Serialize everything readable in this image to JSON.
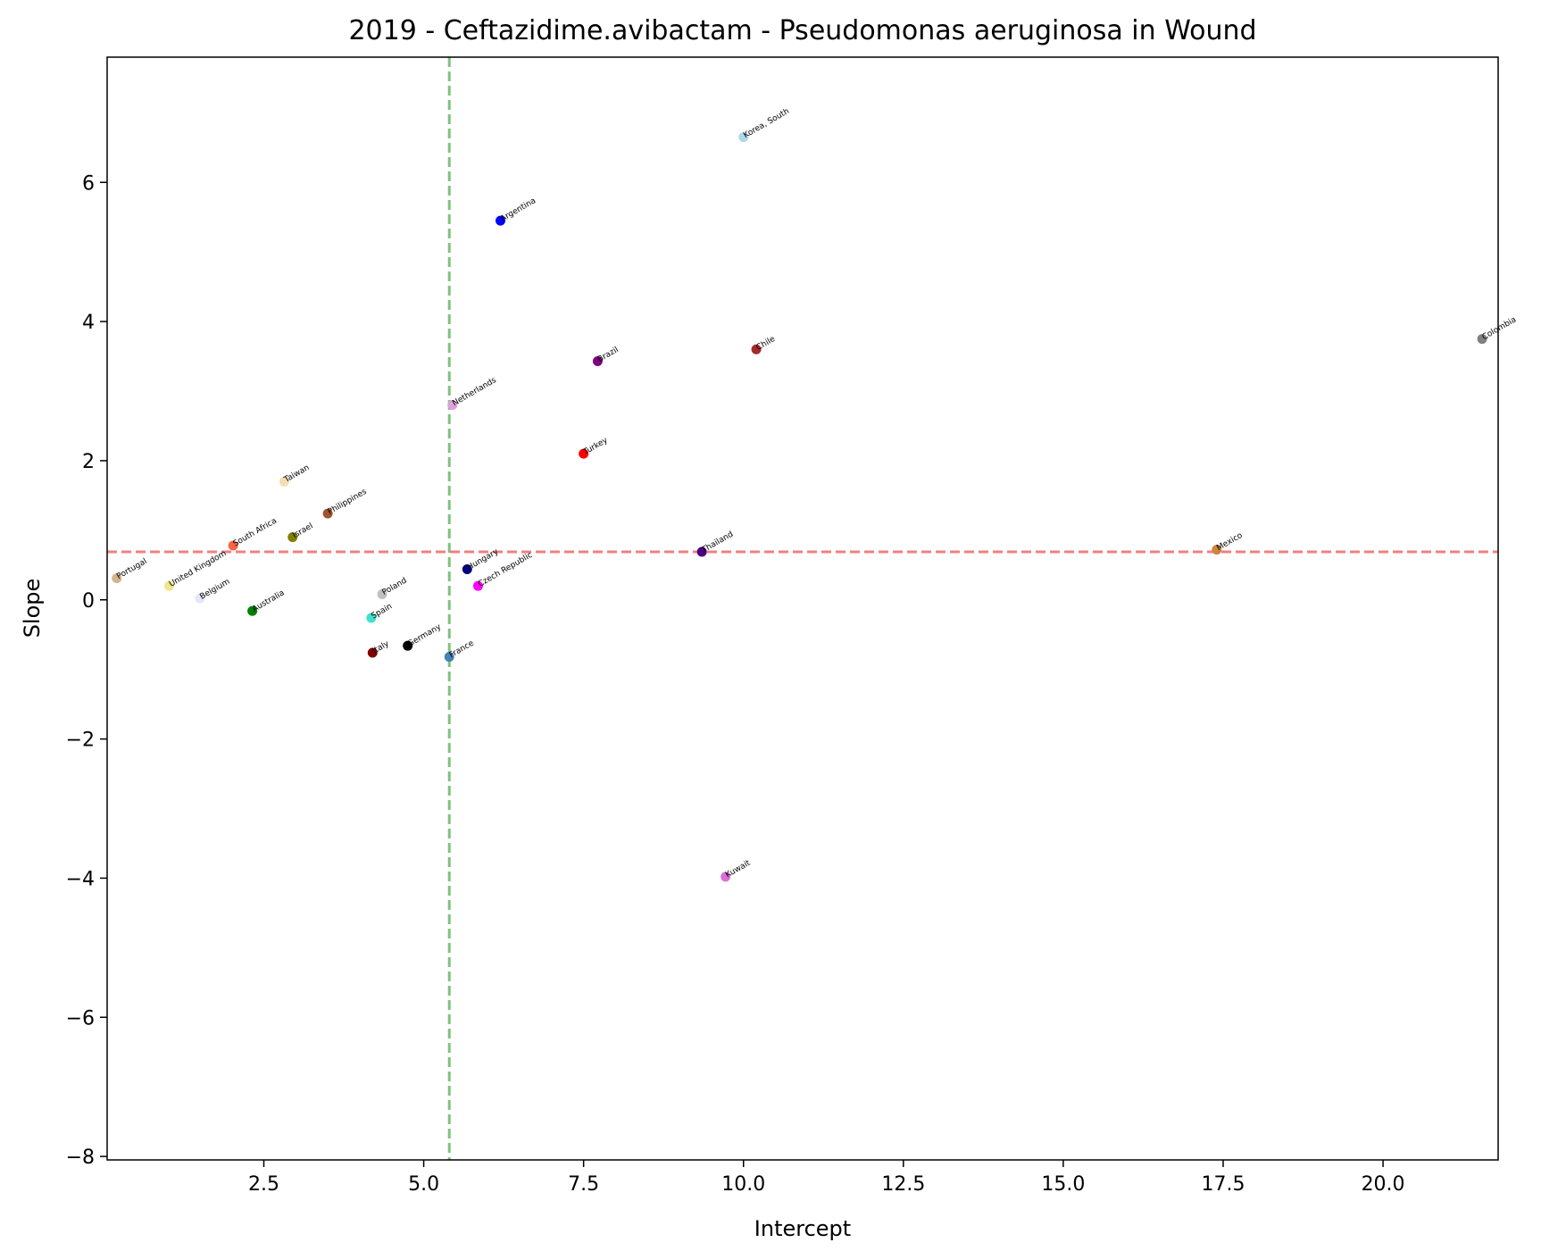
{
  "chart_data": {
    "type": "scatter",
    "title": "2019 - Ceftazidime.avibactam - Pseudomonas aeruginosa in Wound",
    "xlabel": "Intercept",
    "ylabel": "Slope",
    "xlim": [
      0.05,
      21.8
    ],
    "ylim": [
      -8.05,
      7.8
    ],
    "xticks": [
      2.5,
      5.0,
      7.5,
      10.0,
      12.5,
      15.0,
      17.5,
      20.0
    ],
    "xtick_labels": [
      "2.5",
      "5.0",
      "7.5",
      "10.0",
      "12.5",
      "15.0",
      "17.5",
      "20.0"
    ],
    "yticks": [
      -8,
      -6,
      -4,
      -2,
      0,
      2,
      4,
      6
    ],
    "ytick_labels": [
      "−8",
      "−6",
      "−4",
      "−2",
      "0",
      "2",
      "4",
      "6"
    ],
    "grid": false,
    "reference_lines": [
      {
        "orientation": "vertical",
        "value": 5.4,
        "color": "#7dc47d",
        "style": "dashed"
      },
      {
        "orientation": "horizontal",
        "value": 0.69,
        "color": "#f08080",
        "style": "dashed"
      }
    ],
    "points": [
      {
        "label": "Korea, South",
        "x": 10.0,
        "y": 6.65,
        "color": "#add8e6"
      },
      {
        "label": "Argentina",
        "x": 6.2,
        "y": 5.45,
        "color": "#0000ff"
      },
      {
        "label": "Colombia",
        "x": 21.55,
        "y": 3.75,
        "color": "#808080"
      },
      {
        "label": "Chile",
        "x": 10.2,
        "y": 3.6,
        "color": "#a52a2a"
      },
      {
        "label": "Brazil",
        "x": 7.72,
        "y": 3.43,
        "color": "#800080"
      },
      {
        "label": "Netherlands",
        "x": 5.45,
        "y": 2.8,
        "color": "#dda0dd"
      },
      {
        "label": "Turkey",
        "x": 7.5,
        "y": 2.1,
        "color": "#ff0000"
      },
      {
        "label": "Taiwan",
        "x": 2.82,
        "y": 1.7,
        "color": "#f5deb3"
      },
      {
        "label": "Philippines",
        "x": 3.5,
        "y": 1.24,
        "color": "#a0522d"
      },
      {
        "label": "Israel",
        "x": 2.95,
        "y": 0.9,
        "color": "#808000"
      },
      {
        "label": "South Africa",
        "x": 2.02,
        "y": 0.78,
        "color": "#ff6347"
      },
      {
        "label": "Thailand",
        "x": 9.35,
        "y": 0.69,
        "color": "#4b0082"
      },
      {
        "label": "Mexico",
        "x": 17.4,
        "y": 0.72,
        "color": "#cd853f"
      },
      {
        "label": "Hungary",
        "x": 5.68,
        "y": 0.44,
        "color": "#000080"
      },
      {
        "label": "Portugal",
        "x": 0.2,
        "y": 0.31,
        "color": "#d2b48c"
      },
      {
        "label": "United Kingdom",
        "x": 1.02,
        "y": 0.2,
        "color": "#f0e68c"
      },
      {
        "label": "Czech Republic",
        "x": 5.85,
        "y": 0.2,
        "color": "#ff00ff"
      },
      {
        "label": "Poland",
        "x": 4.35,
        "y": 0.08,
        "color": "#c0c0c0"
      },
      {
        "label": "Belgium",
        "x": 1.5,
        "y": 0.02,
        "color": "#e6e6fa"
      },
      {
        "label": "Australia",
        "x": 2.32,
        "y": -0.16,
        "color": "#008000"
      },
      {
        "label": "Spain",
        "x": 4.18,
        "y": -0.26,
        "color": "#40e0d0"
      },
      {
        "label": "Germany",
        "x": 4.75,
        "y": -0.66,
        "color": "#000000"
      },
      {
        "label": "Italy",
        "x": 4.2,
        "y": -0.76,
        "color": "#800000"
      },
      {
        "label": "France",
        "x": 5.4,
        "y": -0.82,
        "color": "#4682b4"
      },
      {
        "label": "Kuwait",
        "x": 9.72,
        "y": -3.98,
        "color": "#da70d6"
      }
    ]
  }
}
